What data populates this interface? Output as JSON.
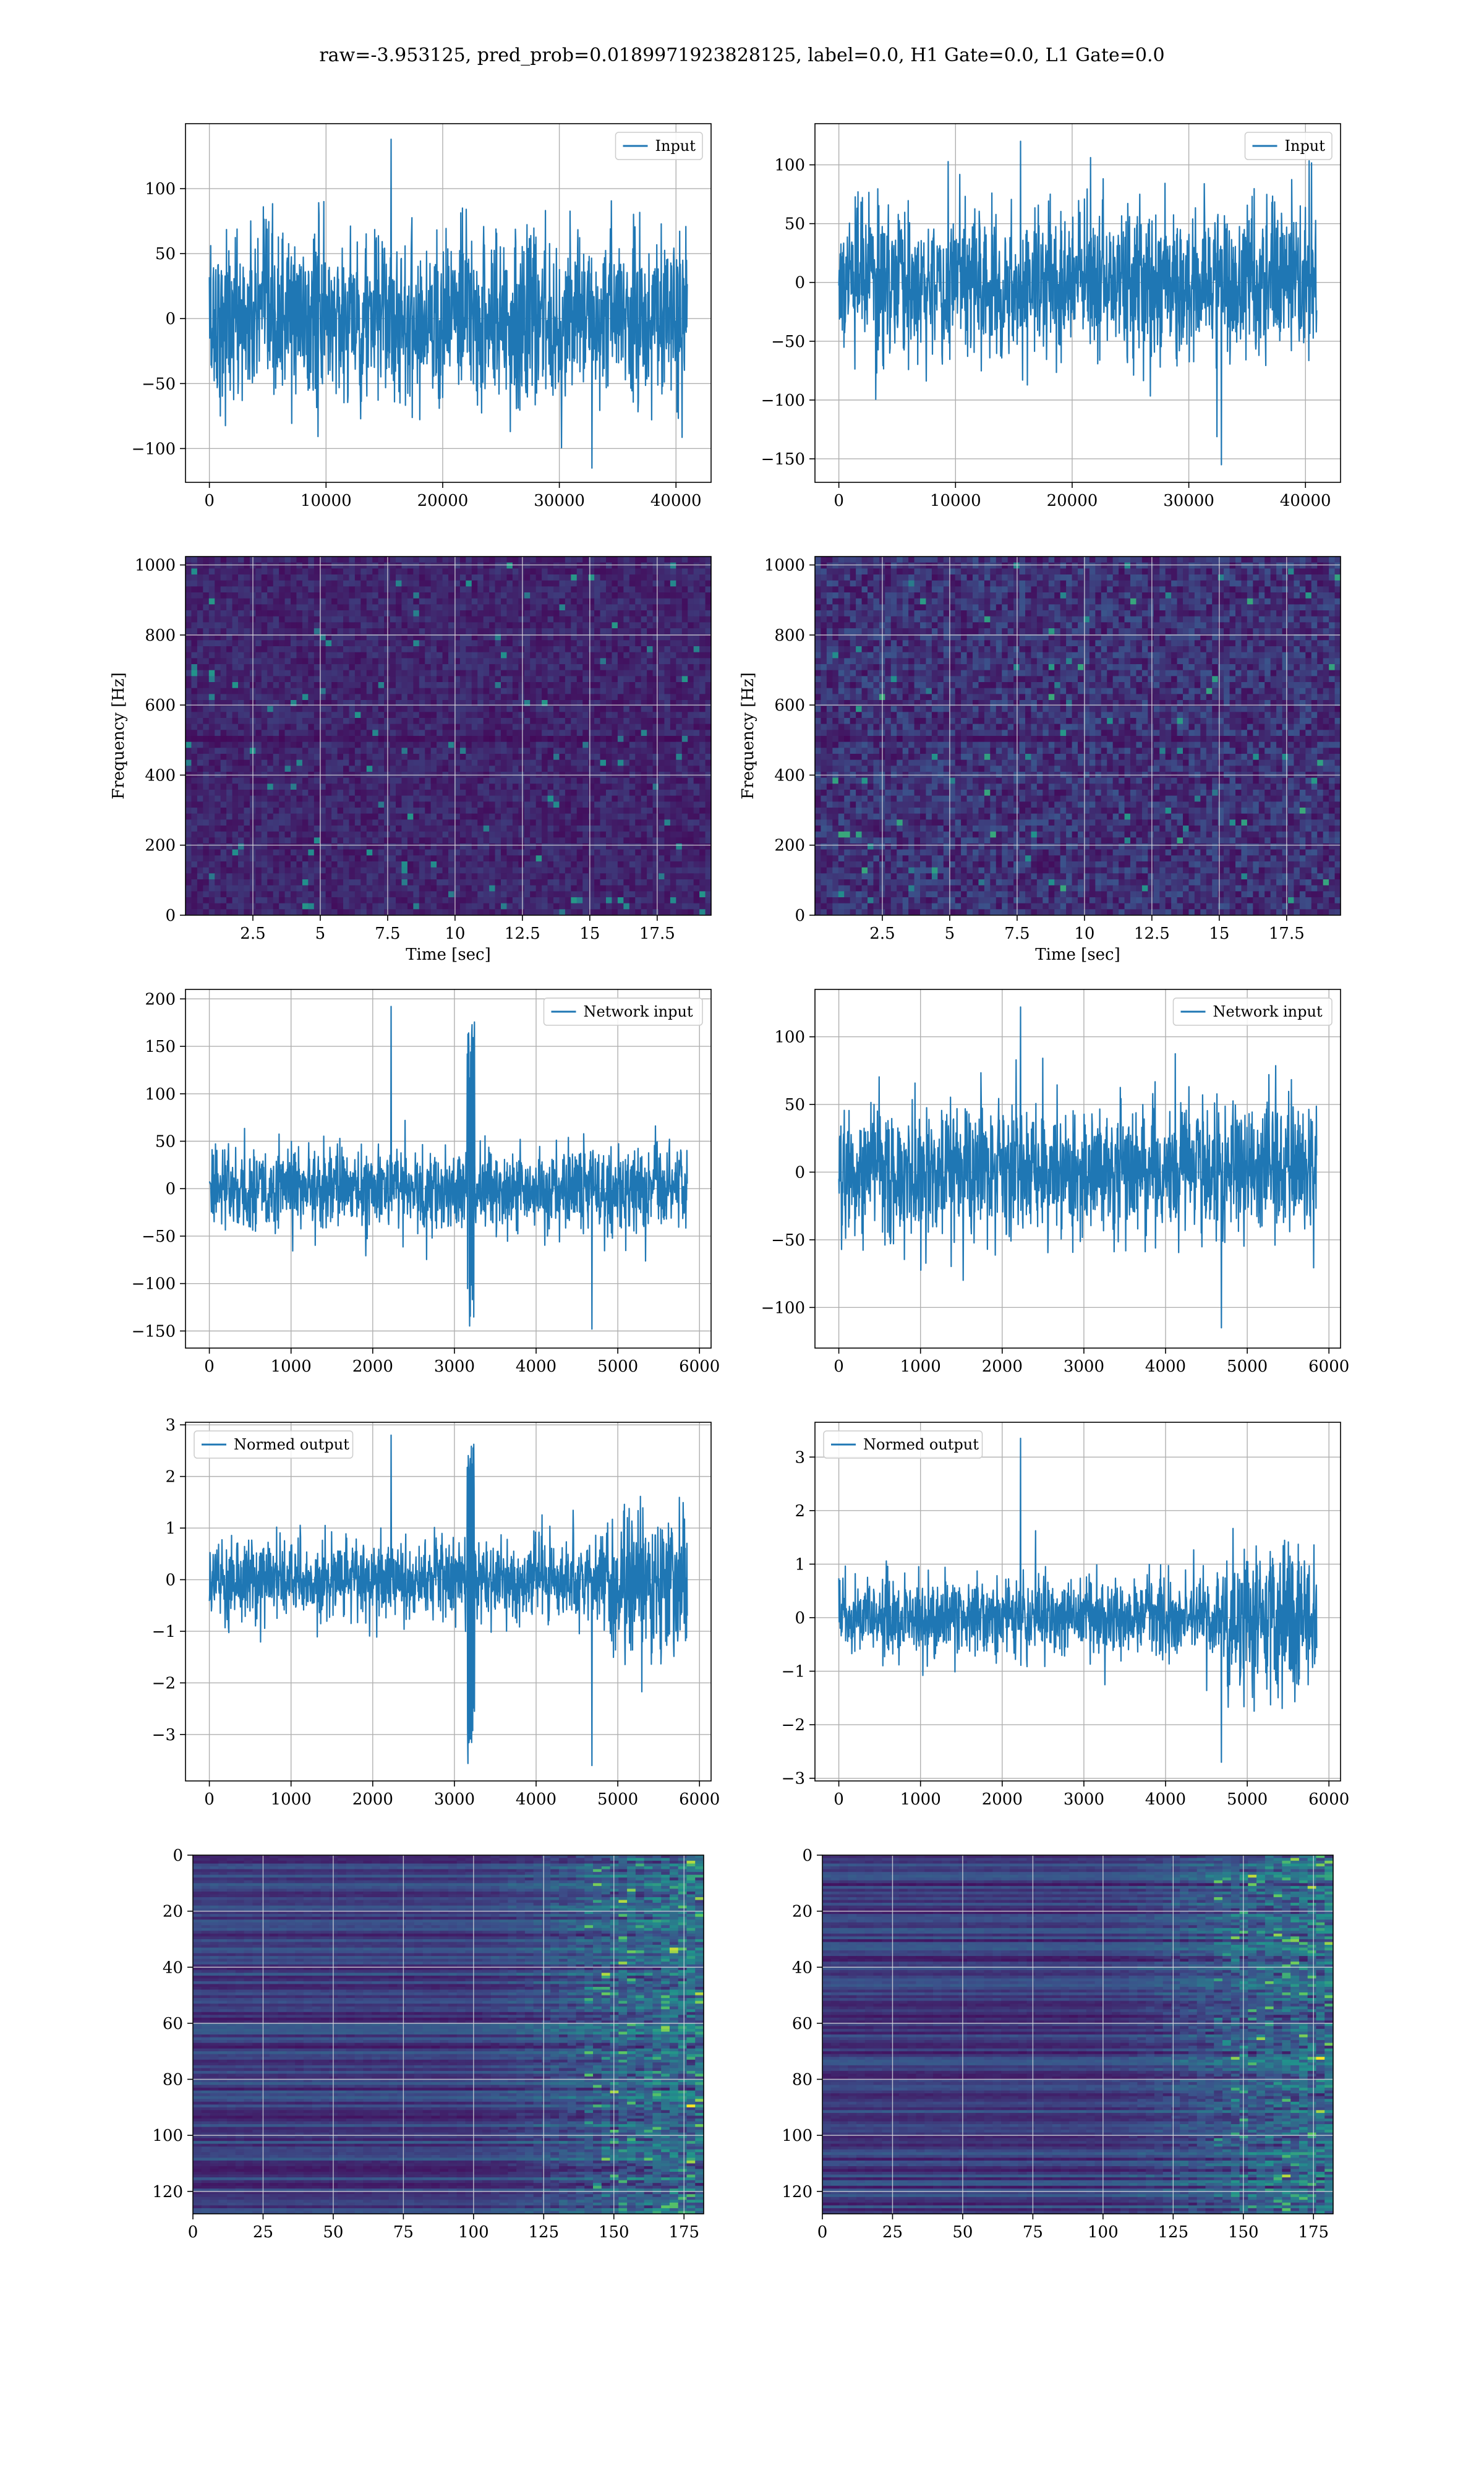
{
  "suptitle": "raw=-3.953125, pred_prob=0.0189971923828125, label=0.0, H1 Gate=0.0, L1 Gate=0.0",
  "chart_data": [
    {
      "id": "h1-input",
      "type": "line",
      "series": [
        {
          "name": "Input",
          "color": "#1f77b4",
          "x_range": [
            0,
            40960
          ],
          "amplitude_typical": 60,
          "min": -115,
          "max": 138
        }
      ],
      "xlim": [
        -2048,
        43008
      ],
      "ylim": [
        -126,
        150
      ],
      "xticks": [
        0,
        10000,
        20000,
        30000,
        40000
      ],
      "yticks": [
        -100,
        -50,
        0,
        50,
        100
      ],
      "xlabel": "",
      "ylabel": "",
      "grid": true,
      "legend": "upper right"
    },
    {
      "id": "l1-input",
      "type": "line",
      "series": [
        {
          "name": "Input",
          "color": "#1f77b4",
          "x_range": [
            0,
            40960
          ],
          "amplitude_typical": 58,
          "min": -155,
          "max": 120
        }
      ],
      "xlim": [
        -2048,
        43008
      ],
      "ylim": [
        -170,
        135
      ],
      "xticks": [
        0,
        10000,
        20000,
        30000,
        40000
      ],
      "yticks": [
        -150,
        -100,
        -50,
        0,
        50,
        100
      ],
      "xlabel": "",
      "ylabel": "",
      "grid": true,
      "legend": "upper right"
    },
    {
      "id": "h1-spectrogram",
      "type": "heatmap",
      "colormap": "viridis",
      "xlim": [
        0,
        19.5
      ],
      "ylim": [
        0,
        1024
      ],
      "xticks": [
        2.5,
        5.0,
        7.5,
        10.0,
        12.5,
        15.0,
        17.5
      ],
      "yticks": [
        0,
        200,
        400,
        600,
        800,
        1000
      ],
      "xlabel": "Time [sec]",
      "ylabel": "Frequency [Hz]",
      "grid": true
    },
    {
      "id": "l1-spectrogram",
      "type": "heatmap",
      "colormap": "viridis",
      "xlim": [
        0,
        19.5
      ],
      "ylim": [
        0,
        1024
      ],
      "xticks": [
        2.5,
        5.0,
        7.5,
        10.0,
        12.5,
        15.0,
        17.5
      ],
      "yticks": [
        0,
        200,
        400,
        600,
        800,
        1000
      ],
      "xlabel": "Time [sec]",
      "ylabel": "Frequency [Hz]",
      "grid": true
    },
    {
      "id": "h1-network-input",
      "type": "line",
      "series": [
        {
          "name": "Network input",
          "color": "#1f77b4",
          "x_range": [
            0,
            5850
          ],
          "amplitude_typical": 40,
          "min": -148,
          "max": 192,
          "burst_at": 3200
        }
      ],
      "xlim": [
        -292,
        6142
      ],
      "ylim": [
        -168,
        210
      ],
      "xticks": [
        0,
        1000,
        2000,
        3000,
        4000,
        5000,
        6000
      ],
      "yticks": [
        -150,
        -100,
        -50,
        0,
        50,
        100,
        150,
        200
      ],
      "xlabel": "",
      "ylabel": "",
      "grid": true,
      "legend": "upper right"
    },
    {
      "id": "l1-network-input",
      "type": "line",
      "series": [
        {
          "name": "Network input",
          "color": "#1f77b4",
          "x_range": [
            0,
            5850
          ],
          "amplitude_typical": 45,
          "min": -115,
          "max": 122
        }
      ],
      "xlim": [
        -292,
        6142
      ],
      "ylim": [
        -130,
        135
      ],
      "xticks": [
        0,
        1000,
        2000,
        3000,
        4000,
        5000,
        6000
      ],
      "yticks": [
        -100,
        -50,
        0,
        50,
        100
      ],
      "xlabel": "",
      "ylabel": "",
      "grid": true,
      "legend": "upper right"
    },
    {
      "id": "h1-normed-output",
      "type": "line",
      "series": [
        {
          "name": "Normed output",
          "color": "#1f77b4",
          "x_range": [
            0,
            5850
          ],
          "amplitude_typical": 0.7,
          "min": -3.6,
          "max": 2.8,
          "burst_at": 3200,
          "loud_from": 4750
        }
      ],
      "xlim": [
        -292,
        6142
      ],
      "ylim": [
        -3.9,
        3.05
      ],
      "xticks": [
        0,
        1000,
        2000,
        3000,
        4000,
        5000,
        6000
      ],
      "yticks": [
        -3,
        -2,
        -1,
        0,
        1,
        2,
        3
      ],
      "xlabel": "",
      "ylabel": "",
      "grid": true,
      "legend": "upper left"
    },
    {
      "id": "l1-normed-output",
      "type": "line",
      "series": [
        {
          "name": "Normed output",
          "color": "#1f77b4",
          "x_range": [
            0,
            5850
          ],
          "amplitude_typical": 0.65,
          "min": -2.7,
          "max": 3.35,
          "loud_from": 4750
        }
      ],
      "xlim": [
        -292,
        6142
      ],
      "ylim": [
        -3.05,
        3.65
      ],
      "xticks": [
        0,
        1000,
        2000,
        3000,
        4000,
        5000,
        6000
      ],
      "yticks": [
        -3,
        -2,
        -1,
        0,
        1,
        2,
        3
      ],
      "xlabel": "",
      "ylabel": "",
      "grid": true,
      "legend": "upper left"
    },
    {
      "id": "h1-feature-map",
      "type": "heatmap",
      "colormap": "viridis",
      "xlim": [
        0,
        182
      ],
      "ylim": [
        128,
        0
      ],
      "xticks": [
        0,
        25,
        50,
        75,
        100,
        125,
        150,
        175
      ],
      "yticks": [
        0,
        20,
        40,
        60,
        80,
        100,
        120
      ],
      "xlabel": "",
      "ylabel": "",
      "grid": true
    },
    {
      "id": "l1-feature-map",
      "type": "heatmap",
      "colormap": "viridis",
      "xlim": [
        0,
        182
      ],
      "ylim": [
        128,
        0
      ],
      "xticks": [
        0,
        25,
        50,
        75,
        100,
        125,
        150,
        175
      ],
      "yticks": [
        0,
        20,
        40,
        60,
        80,
        100,
        120
      ],
      "xlabel": "",
      "ylabel": "",
      "grid": true
    }
  ]
}
